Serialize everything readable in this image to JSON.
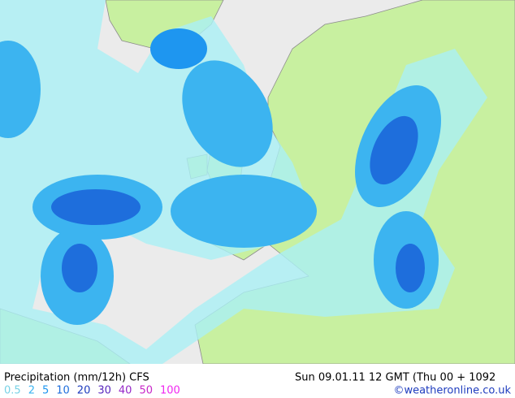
{
  "header": {
    "title": "Precipitation (mm/12h) CFS",
    "valid_time": "Sun 09.01.11 12 GMT (Thu 00 + 1092",
    "credit": "©weatheronline.co.uk"
  },
  "legend": {
    "items": [
      {
        "label": "0.5",
        "color": "#78d2e6"
      },
      {
        "label": "2",
        "color": "#3cb4f0"
      },
      {
        "label": "5",
        "color": "#1e96f0"
      },
      {
        "label": "10",
        "color": "#1e6edc"
      },
      {
        "label": "20",
        "color": "#1e3cbe"
      },
      {
        "label": "30",
        "color": "#5a28be"
      },
      {
        "label": "40",
        "color": "#9628c8"
      },
      {
        "label": "50",
        "color": "#c828c8"
      },
      {
        "label": "100",
        "color": "#f028f0"
      }
    ]
  }
}
